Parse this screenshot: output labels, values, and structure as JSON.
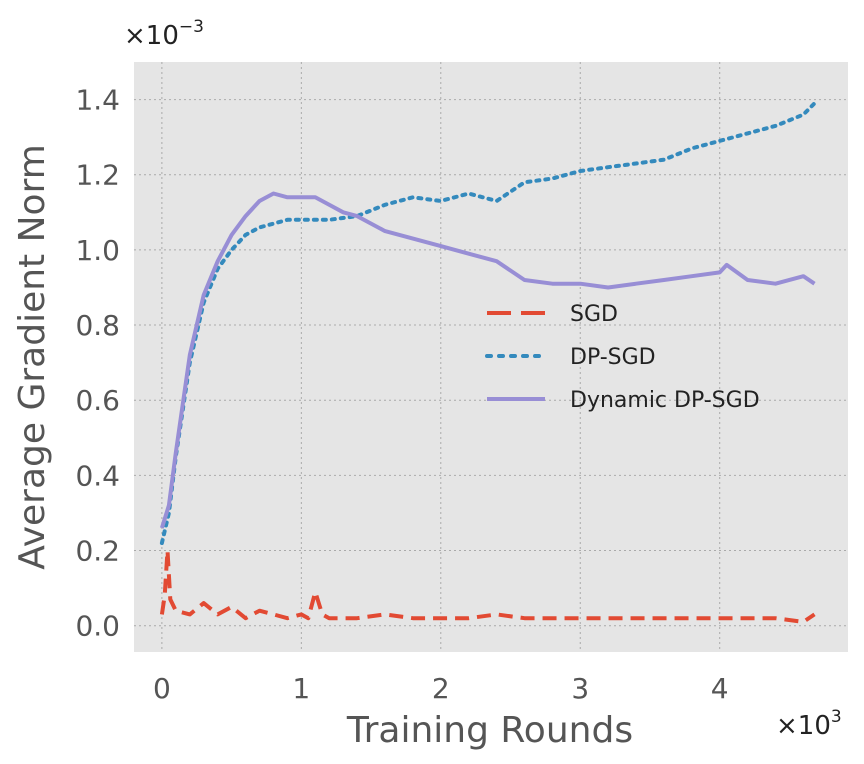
{
  "chart_data": {
    "type": "line",
    "xlabel": "Training Rounds",
    "ylabel": "Average Gradient Norm",
    "x_multiplier": {
      "base": "×10",
      "exp": "3"
    },
    "y_multiplier": {
      "base": "×10",
      "exp": "−3"
    },
    "xlim": [
      -0.2,
      4.92
    ],
    "ylim": [
      -0.07,
      1.5
    ],
    "x_ticks": [
      "0",
      "1",
      "2",
      "3",
      "4"
    ],
    "y_ticks": [
      "0.0",
      "0.2",
      "0.4",
      "0.6",
      "0.8",
      "1.0",
      "1.2",
      "1.4"
    ],
    "grid": true,
    "legend_position": "center-right",
    "series": [
      {
        "name": "SGD",
        "color": "#E24A33",
        "style": "dashed",
        "x": [
          0,
          0.02,
          0.04,
          0.06,
          0.1,
          0.2,
          0.3,
          0.4,
          0.5,
          0.6,
          0.7,
          0.8,
          0.9,
          1.0,
          1.05,
          1.1,
          1.15,
          1.2,
          1.4,
          1.6,
          1.8,
          2.0,
          2.2,
          2.4,
          2.6,
          2.8,
          3.0,
          3.2,
          3.4,
          3.6,
          3.8,
          4.0,
          4.2,
          4.4,
          4.6,
          4.68
        ],
        "values": [
          0.03,
          0.08,
          0.2,
          0.07,
          0.04,
          0.03,
          0.06,
          0.03,
          0.05,
          0.02,
          0.04,
          0.03,
          0.02,
          0.03,
          0.02,
          0.09,
          0.03,
          0.02,
          0.02,
          0.03,
          0.02,
          0.02,
          0.02,
          0.03,
          0.02,
          0.02,
          0.02,
          0.02,
          0.02,
          0.02,
          0.02,
          0.02,
          0.02,
          0.02,
          0.01,
          0.03
        ]
      },
      {
        "name": "DP-SGD",
        "color": "#348ABD",
        "style": "dotted",
        "x": [
          0,
          0.05,
          0.1,
          0.2,
          0.3,
          0.4,
          0.5,
          0.6,
          0.7,
          0.8,
          0.9,
          1.0,
          1.2,
          1.4,
          1.6,
          1.8,
          2.0,
          2.2,
          2.4,
          2.6,
          2.8,
          3.0,
          3.2,
          3.4,
          3.6,
          3.8,
          4.0,
          4.2,
          4.4,
          4.6,
          4.68
        ],
        "values": [
          0.22,
          0.3,
          0.45,
          0.7,
          0.86,
          0.95,
          1.0,
          1.04,
          1.06,
          1.07,
          1.08,
          1.08,
          1.08,
          1.09,
          1.12,
          1.14,
          1.13,
          1.15,
          1.13,
          1.18,
          1.19,
          1.21,
          1.22,
          1.23,
          1.24,
          1.27,
          1.29,
          1.31,
          1.33,
          1.36,
          1.39
        ]
      },
      {
        "name": "Dynamic DP-SGD",
        "color": "#988ED5",
        "style": "solid",
        "x": [
          0,
          0.05,
          0.1,
          0.2,
          0.3,
          0.4,
          0.5,
          0.6,
          0.7,
          0.8,
          0.9,
          1.0,
          1.1,
          1.2,
          1.3,
          1.4,
          1.6,
          1.8,
          2.0,
          2.2,
          2.4,
          2.6,
          2.8,
          3.0,
          3.2,
          3.4,
          3.6,
          3.8,
          4.0,
          4.05,
          4.2,
          4.4,
          4.6,
          4.68
        ],
        "values": [
          0.26,
          0.32,
          0.46,
          0.72,
          0.88,
          0.97,
          1.04,
          1.09,
          1.13,
          1.15,
          1.14,
          1.14,
          1.14,
          1.12,
          1.1,
          1.09,
          1.05,
          1.03,
          1.01,
          0.99,
          0.97,
          0.92,
          0.91,
          0.91,
          0.9,
          0.91,
          0.92,
          0.93,
          0.94,
          0.96,
          0.92,
          0.91,
          0.93,
          0.91
        ]
      }
    ]
  }
}
